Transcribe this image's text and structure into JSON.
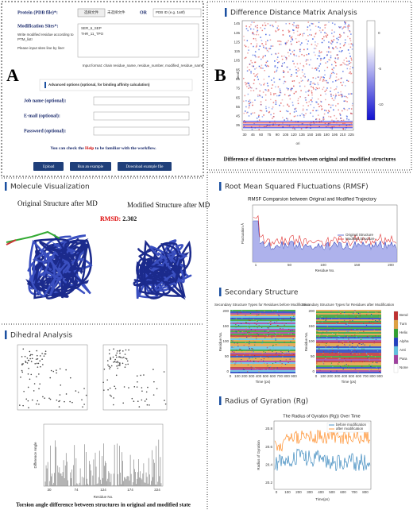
{
  "panel_a": {
    "label": "A",
    "protein_label": "Protein (PDB file)*:",
    "file_button": "选择文件",
    "file_status": "未选择文件",
    "or": "OR",
    "pdb_placeholder": "PDB ID (e.g. 1a8f)",
    "modification_label": "Modification Sites*:",
    "modification_hint": [
      "Write modified residue according to",
      "PTM_list!"
    ],
    "modification_note": "Please input sites line by line!",
    "sites_example": [
      "SER_6_SEP",
      "THR_11_TPO"
    ],
    "input_format": "Input format: chain residue_name, residue_number, modified_residue_name",
    "advanced_title": "Advanced options (optional, for binding affinity calculation)",
    "fields": [
      "Job name (optional):",
      "E-mail (optional):",
      "Password (optional):"
    ],
    "help_text": [
      "You can check the ",
      "Help",
      " to be familiar with the workflow."
    ],
    "buttons": [
      "Upload",
      "Run an example",
      "Download example file"
    ]
  },
  "panel_b": {
    "label": "B",
    "title": "Difference Distance Matrix Analysis",
    "ylabel": "mod",
    "xlabel": "ori",
    "xticks": [
      "30",
      "45",
      "60",
      "75",
      "90",
      "105",
      "120",
      "135",
      "150",
      "165",
      "180",
      "195",
      "210",
      "225"
    ],
    "yticks": [
      "145",
      "135",
      "125",
      "115",
      "105",
      "95",
      "85",
      "75",
      "65",
      "55",
      "45",
      "35"
    ],
    "colorbar_ticks": [
      "0",
      "-5",
      "-10"
    ],
    "caption": "Difference of distance matrices between original and modified structures"
  },
  "molecule": {
    "title": "Molecule Visualization",
    "original": "Original Structure after MD",
    "modified": "Modified Structure after MD",
    "rmsd_label": "RMSD:",
    "rmsd_value": "2.302"
  },
  "dihedral": {
    "title": "Dihedral Analysis",
    "ylabel": "Difference Angle",
    "xlabel": "Residue No.",
    "xticks": [
      "30",
      "74",
      "124",
      "174",
      "224"
    ],
    "caption": "Torsion angle difference between structures in original and modified state"
  },
  "rmsf": {
    "title": "Root Mean Squared Fluctuations (RMSF)",
    "chart_title": "RMSF Comparsion between Original and Modified Trajectory",
    "ylabel": "Fluctuation Å",
    "xlabel": "Residue No.",
    "xticks": [
      "1",
      "50",
      "100",
      "150",
      "200"
    ],
    "legend": [
      "Original Structure",
      "Modified Structure"
    ]
  },
  "secondary": {
    "title": "Secondary Structure",
    "chart_titles": [
      "Secondary Structure Types for Residues before Modification",
      "Secondary Structure Types for Residues after Modification"
    ],
    "ylabel": "Residue No.",
    "xlabel": "Time (ps)",
    "yticks": [
      "200",
      "150",
      "100",
      "50",
      "0"
    ],
    "xticks": [
      "0",
      "100",
      "200",
      "300",
      "400",
      "500",
      "600",
      "700",
      "800",
      "900"
    ],
    "legend": [
      "Bend",
      "Turn",
      "Helix",
      "Alpha",
      "Anti",
      "Para",
      "None"
    ]
  },
  "rg": {
    "title": "Radius of Gyration (Rg)",
    "chart_title": "The Radius of Gyration (Rg)) Over Time",
    "ylabel": "Radius of Gyration",
    "xlabel": "Time(ps)",
    "yticks": [
      "20.8",
      "20.6",
      "20.4",
      "20.2"
    ],
    "xticks": [
      "0",
      "100",
      "200",
      "300",
      "400",
      "500",
      "600",
      "700",
      "800"
    ],
    "legend": [
      "before modification",
      "after modification"
    ]
  }
}
